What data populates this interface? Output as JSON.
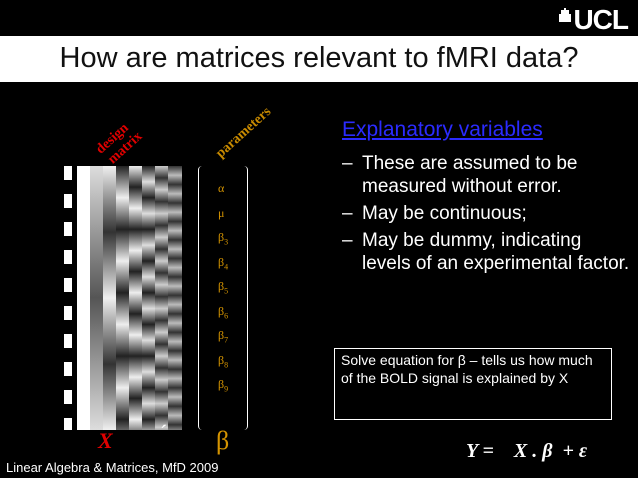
{
  "slide": {
    "logo_text": "UCL",
    "title": "How are matrices relevant to fMRI data?",
    "footer": "Linear Algebra & Matrices, MfD 2009"
  },
  "figure": {
    "design_label_1": "design",
    "design_label_2": "matrix",
    "parameters_label": "parameters",
    "params": [
      "α",
      "μ",
      "β",
      "β",
      "β",
      "β",
      "β",
      "β",
      "β"
    ],
    "param_subs": [
      "",
      "",
      "3",
      "4",
      "5",
      "6",
      "7",
      "8",
      "9"
    ],
    "x_label": "X",
    "prime_mark": "´",
    "beta_label": "β"
  },
  "explanatory": {
    "heading": "Explanatory variables",
    "bullets": [
      "These are assumed to be measured without error.",
      "May be continuous;",
      "May be dummy, indicating levels of an experimental factor."
    ],
    "dash": "–"
  },
  "solve_box": "Solve equation for β – tells us how much of the BOLD signal is explained by X",
  "equation": "Y =    X . β  + ε",
  "colors": {
    "red": "#e00000",
    "orange": "#d59400",
    "link": "#2b2bff"
  }
}
